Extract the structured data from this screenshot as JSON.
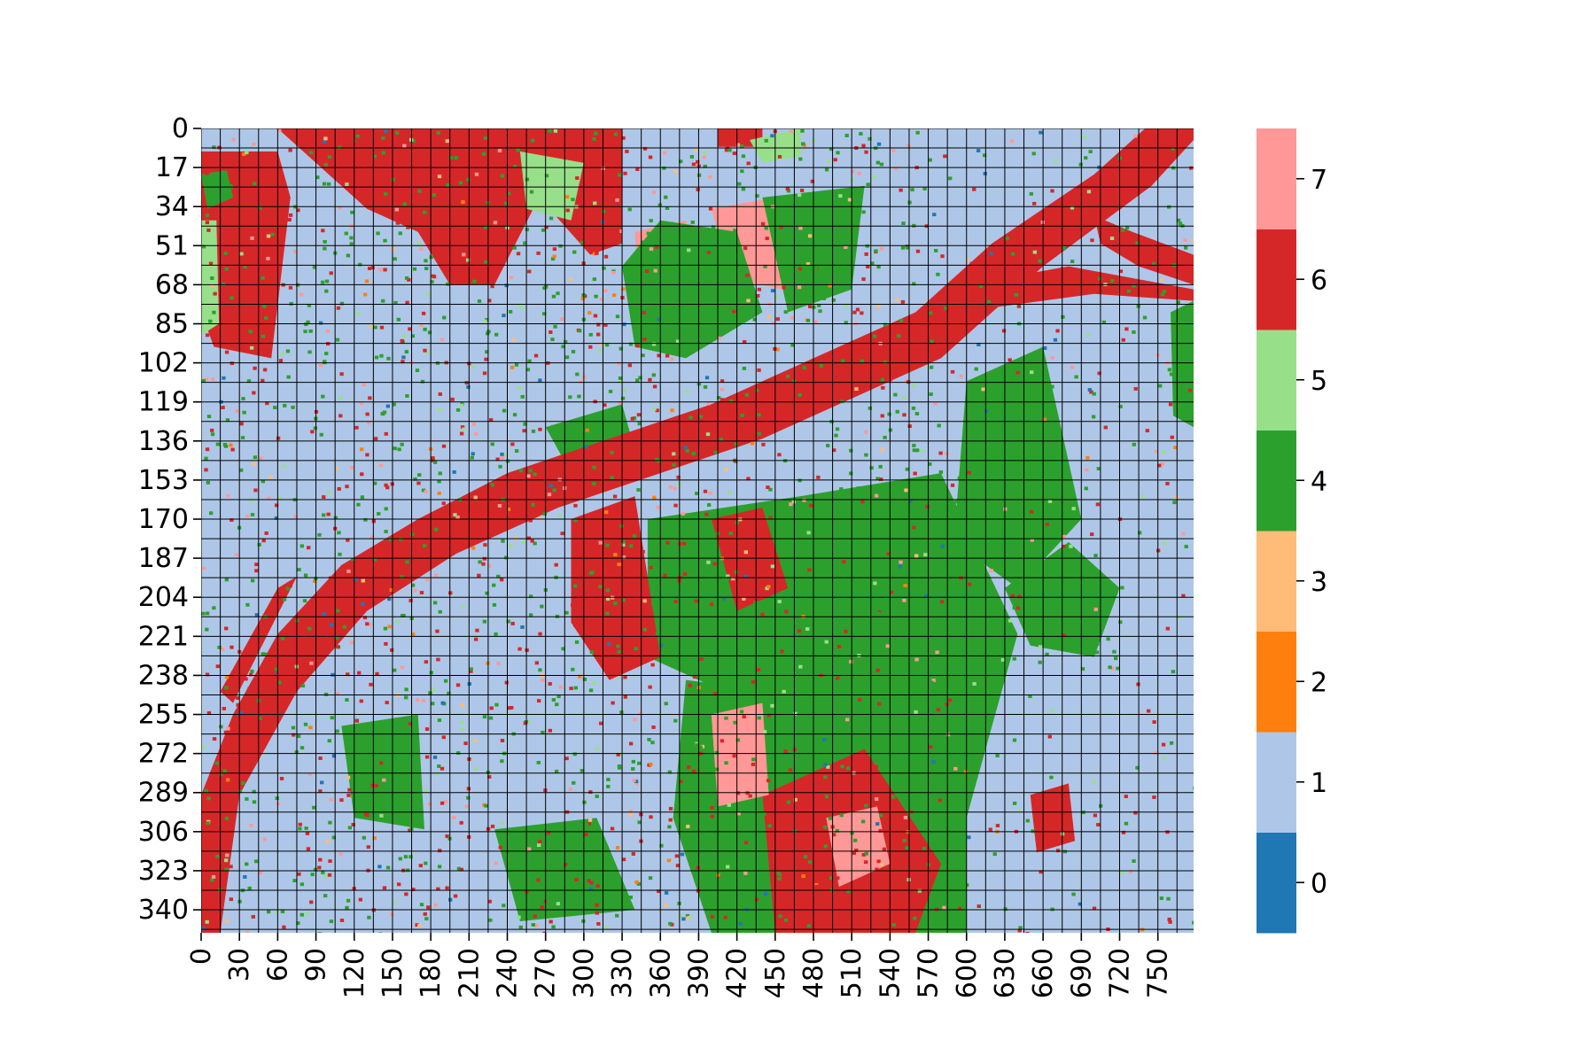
{
  "chart_data": {
    "type": "heatmap",
    "title": "",
    "xlabel": "",
    "ylabel": "",
    "x_tick_labels": [
      "0",
      "30",
      "60",
      "90",
      "120",
      "150",
      "180",
      "210",
      "240",
      "270",
      "300",
      "330",
      "360",
      "390",
      "420",
      "450",
      "480",
      "510",
      "540",
      "570",
      "600",
      "630",
      "660",
      "690",
      "720",
      "750"
    ],
    "y_tick_labels": [
      "0",
      "17",
      "34",
      "51",
      "68",
      "85",
      "102",
      "119",
      "136",
      "153",
      "170",
      "187",
      "204",
      "221",
      "238",
      "255",
      "272",
      "289",
      "306",
      "323",
      "340"
    ],
    "x_range": [
      0,
      778
    ],
    "y_range": [
      0,
      350
    ],
    "grid": true,
    "colorbar": {
      "ticks": [
        "0",
        "1",
        "2",
        "3",
        "4",
        "5",
        "6",
        "7"
      ],
      "colors": [
        "#1f77b4",
        "#aec7e8",
        "#ff7f0e",
        "#ffbb78",
        "#2ca02c",
        "#98df8a",
        "#d62728",
        "#ff9896"
      ]
    },
    "classes": [
      0,
      1,
      2,
      3,
      4,
      5,
      6,
      7
    ],
    "dominant_class": 1,
    "approximate_features": [
      {
        "class": 6,
        "description_shape": "diagonal river band from lower-left to upper-right"
      },
      {
        "class": 6,
        "description_shape": "large patches top-left"
      },
      {
        "class": 4,
        "description_shape": "scattered vegetation throughout, dense lower middle"
      },
      {
        "class": 7,
        "description_shape": "patches top center and lower center"
      }
    ]
  }
}
